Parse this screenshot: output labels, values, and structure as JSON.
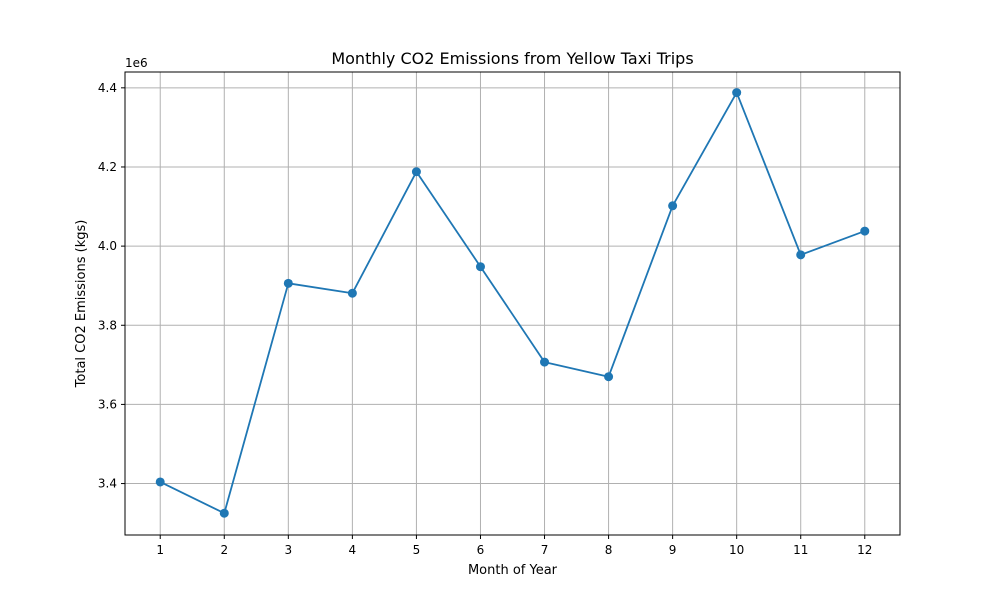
{
  "chart_data": {
    "type": "line",
    "title": "Monthly CO2 Emissions from Yellow Taxi Trips",
    "xlabel": "Month of Year",
    "ylabel": "Total CO2 Emissions (kgs)",
    "y_offset_label": "1e6",
    "y_multiplier": 1000000,
    "categories": [
      "1",
      "2",
      "3",
      "4",
      "5",
      "6",
      "7",
      "8",
      "9",
      "10",
      "11",
      "12"
    ],
    "series": [
      {
        "color": "#1f77b4",
        "marker": "circle",
        "values": [
          3404000,
          3325000,
          3906000,
          3881000,
          4188000,
          3948000,
          3707000,
          3670000,
          4102000,
          4388000,
          3978000,
          4038000
        ]
      }
    ],
    "xlim": [
      0.45,
      12.55
    ],
    "ylim": [
      3270000,
      4440000
    ],
    "yticks": [
      {
        "value": 3400000,
        "label": "3.4"
      },
      {
        "value": 3600000,
        "label": "3.6"
      },
      {
        "value": 3800000,
        "label": "3.8"
      },
      {
        "value": 4000000,
        "label": "4.0"
      },
      {
        "value": 4200000,
        "label": "4.2"
      },
      {
        "value": 4400000,
        "label": "4.4"
      }
    ],
    "grid": true,
    "legend": "none",
    "colors": {
      "axis": "#000000",
      "grid": "#b0b0b0",
      "line": "#1f77b4"
    }
  }
}
